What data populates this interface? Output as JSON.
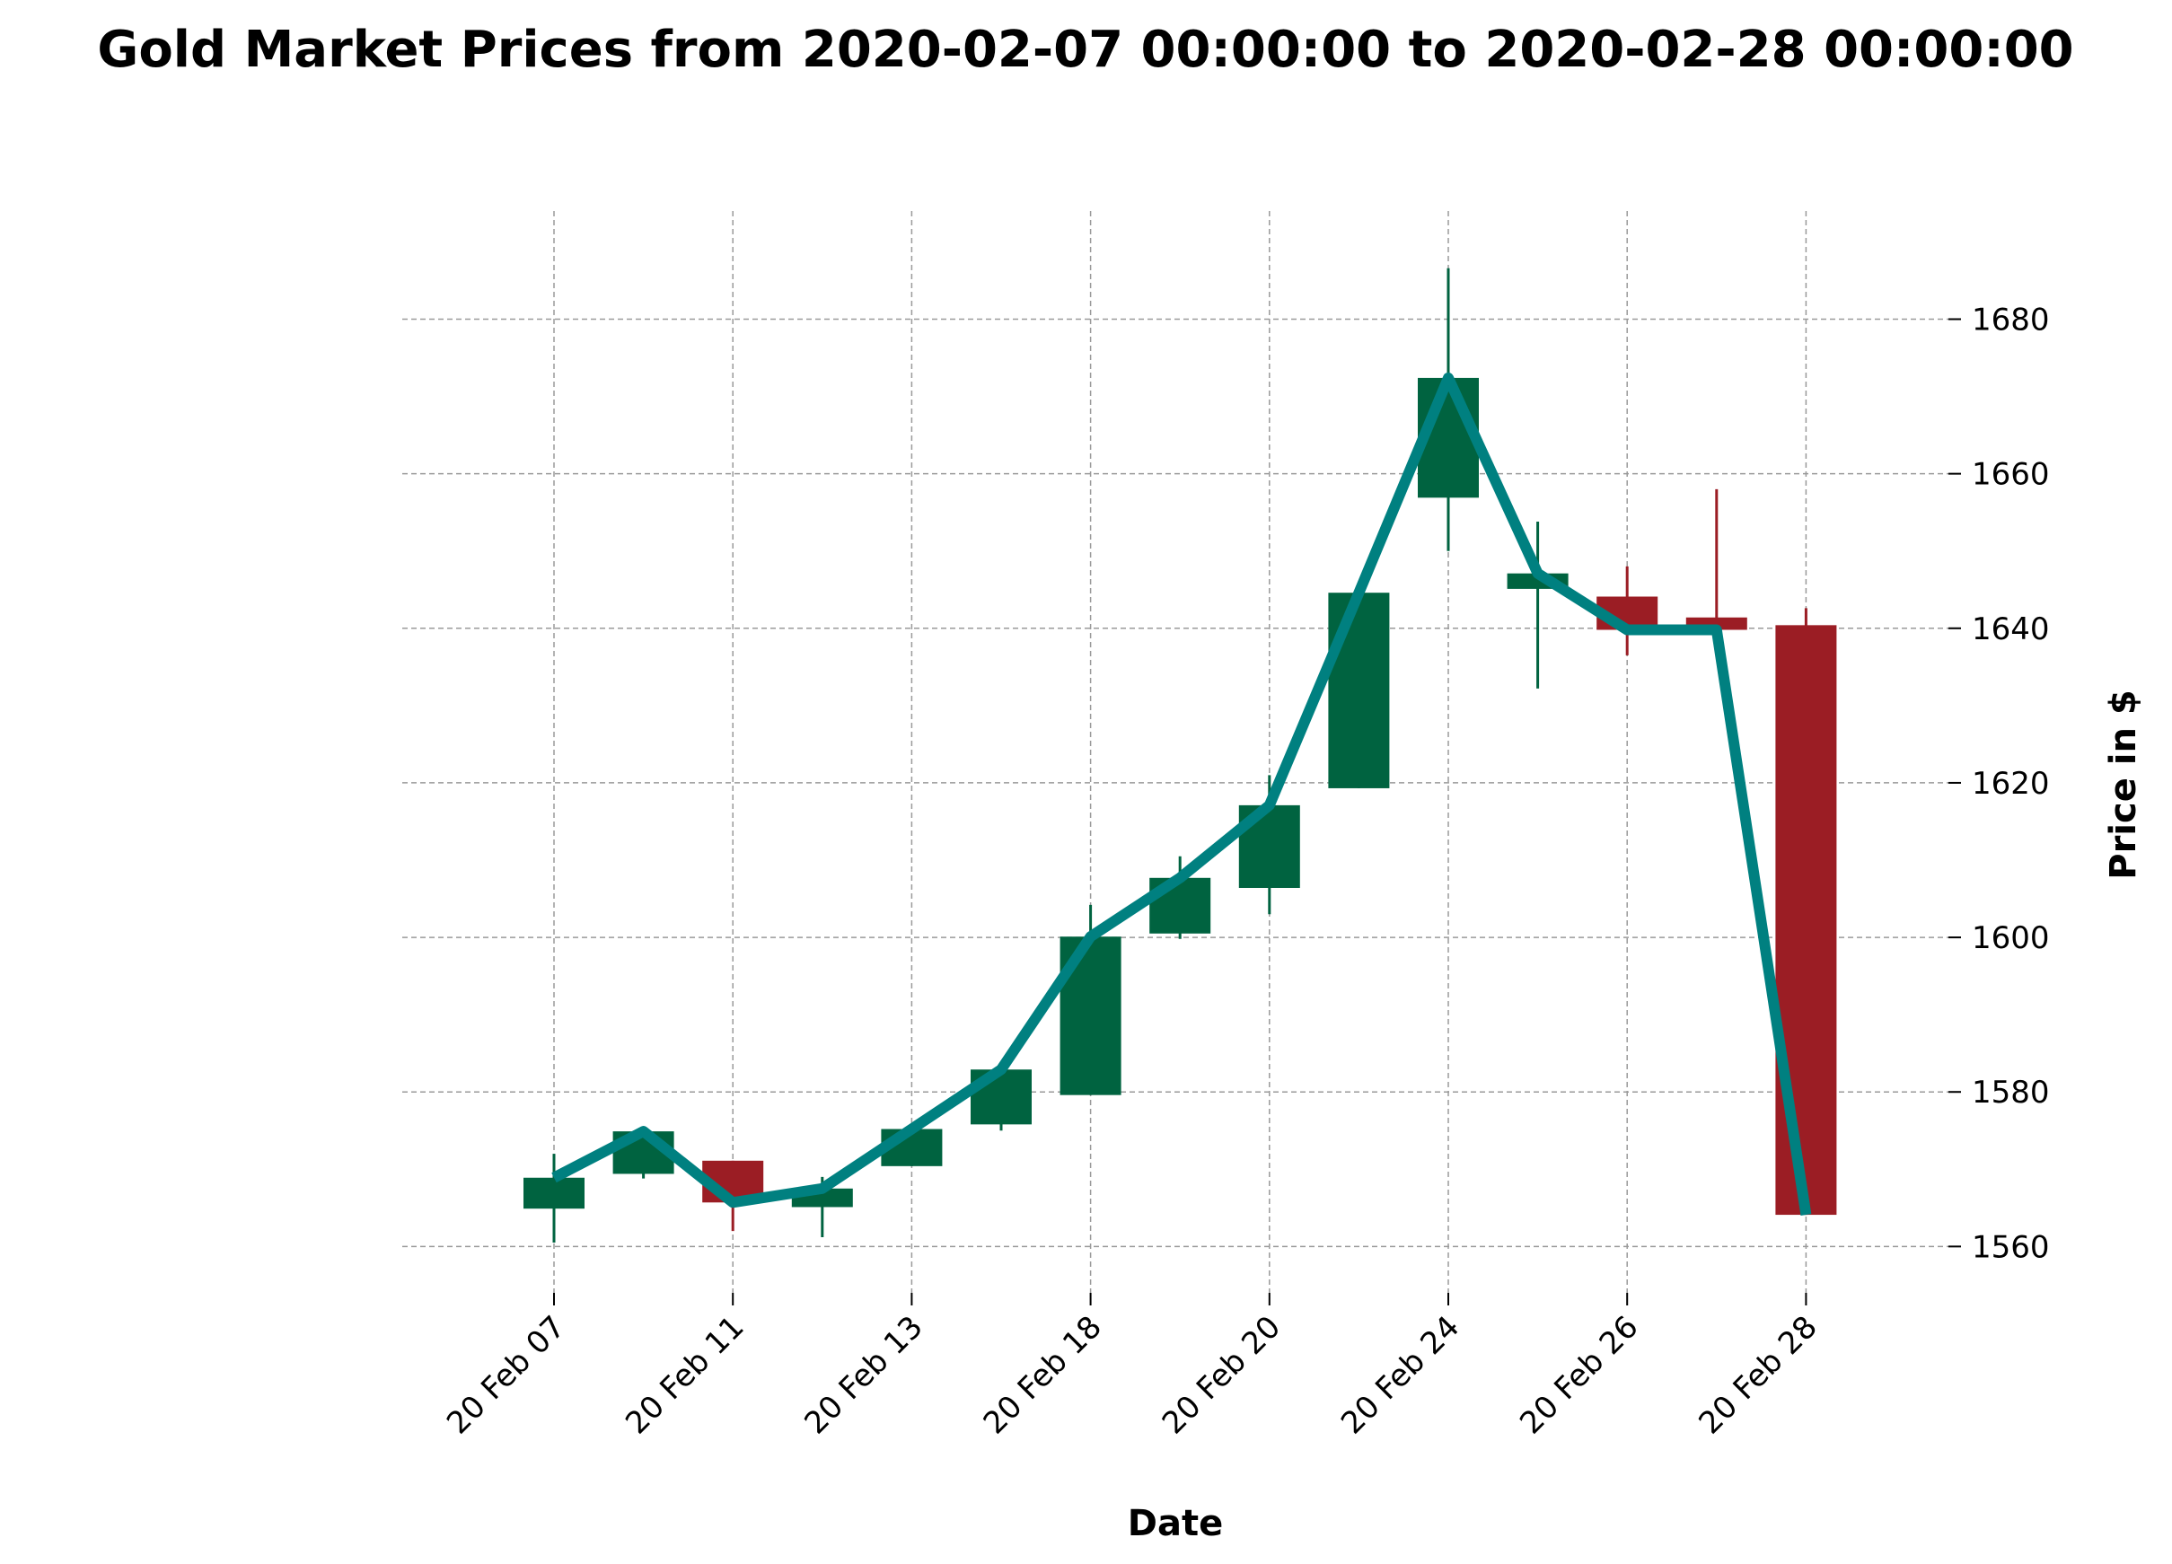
{
  "chart_data": {
    "type": "candlestick",
    "title": "Gold Market Prices from 2020-02-07 00:00:00 to 2020-02-28 00:00:00",
    "xlabel": "Date",
    "ylabel": "Price in $",
    "ylim": [
      1554,
      1694
    ],
    "yticks": [
      1560,
      1580,
      1600,
      1620,
      1640,
      1660,
      1680
    ],
    "ytick_labels": [
      "1560",
      "1580",
      "1600",
      "1620",
      "1640",
      "1660",
      "1680"
    ],
    "xtick_labels": [
      "20 Feb 07",
      "20 Feb 11",
      "20 Feb 13",
      "20 Feb 18",
      "20 Feb 20",
      "20 Feb 24",
      "20 Feb 26",
      "20 Feb 28"
    ],
    "xtick_indices": [
      0,
      2,
      4,
      6,
      8,
      10,
      12,
      14
    ],
    "grid": true,
    "y_axis_position": "right",
    "colors": {
      "up": "#006340",
      "down": "#9b1d24",
      "line": "#008080"
    },
    "candles": [
      {
        "date": "2020-02-07",
        "open": 1564.9,
        "high": 1572.0,
        "low": 1560.5,
        "close": 1568.9
      },
      {
        "date": "2020-02-10",
        "open": 1569.4,
        "high": 1575.0,
        "low": 1568.8,
        "close": 1574.9
      },
      {
        "date": "2020-02-11",
        "open": 1571.1,
        "high": 1571.1,
        "low": 1562.0,
        "close": 1565.7
      },
      {
        "date": "2020-02-12",
        "open": 1565.1,
        "high": 1569.0,
        "low": 1561.2,
        "close": 1567.5
      },
      {
        "date": "2020-02-13",
        "open": 1570.4,
        "high": 1575.2,
        "low": 1570.4,
        "close": 1575.2
      },
      {
        "date": "2020-02-14",
        "open": 1575.8,
        "high": 1582.9,
        "low": 1575.0,
        "close": 1582.9
      },
      {
        "date": "2020-02-18",
        "open": 1579.6,
        "high": 1604.2,
        "low": 1579.6,
        "close": 1600.1
      },
      {
        "date": "2020-02-19",
        "open": 1600.5,
        "high": 1610.5,
        "low": 1599.8,
        "close": 1607.7
      },
      {
        "date": "2020-02-20",
        "open": 1606.4,
        "high": 1621.0,
        "low": 1603.0,
        "close": 1617.1
      },
      {
        "date": "2020-02-21",
        "open": 1619.3,
        "high": 1644.6,
        "low": 1619.3,
        "close": 1644.6
      },
      {
        "date": "2020-02-24",
        "open": 1656.9,
        "high": 1686.6,
        "low": 1650.0,
        "close": 1672.4
      },
      {
        "date": "2020-02-25",
        "open": 1645.1,
        "high": 1653.8,
        "low": 1632.2,
        "close": 1647.1
      },
      {
        "date": "2020-02-26",
        "open": 1644.1,
        "high": 1648.0,
        "low": 1636.5,
        "close": 1639.8
      },
      {
        "date": "2020-02-27",
        "open": 1641.4,
        "high": 1658.0,
        "low": 1639.8,
        "close": 1639.8
      },
      {
        "date": "2020-02-28",
        "open": 1640.4,
        "high": 1642.6,
        "low": 1564.1,
        "close": 1564.1
      }
    ]
  }
}
